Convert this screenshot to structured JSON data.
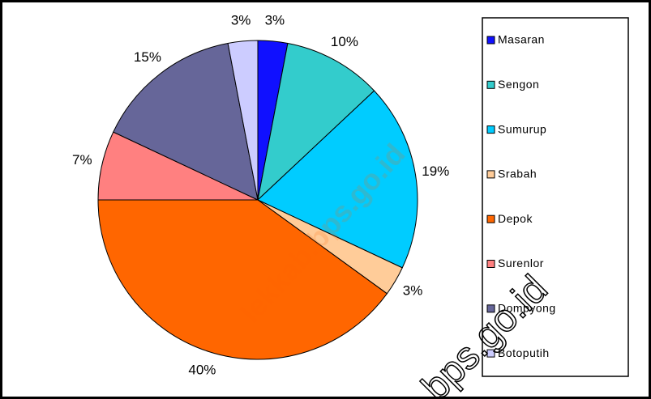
{
  "chart_data": {
    "type": "pie",
    "categories": [
      "Masaran",
      "Sengon",
      "Sumurup",
      "Srabah",
      "Depok",
      "Surenlor",
      "Dompyong",
      "Botoputih"
    ],
    "values": [
      3,
      10,
      19,
      3,
      40,
      7,
      15,
      3
    ],
    "value_labels": [
      "3%",
      "10%",
      "19%",
      "3%",
      "40%",
      "7%",
      "15%",
      "3%"
    ],
    "colors": [
      "#1010ff",
      "#33cccc",
      "#00ccff",
      "#ffcc99",
      "#ff6600",
      "#ff8080",
      "#666699",
      "#ccccff"
    ],
    "legend": "right",
    "watermarks": [
      "lekkab.bps.go.id",
      "bps.go.id"
    ]
  }
}
